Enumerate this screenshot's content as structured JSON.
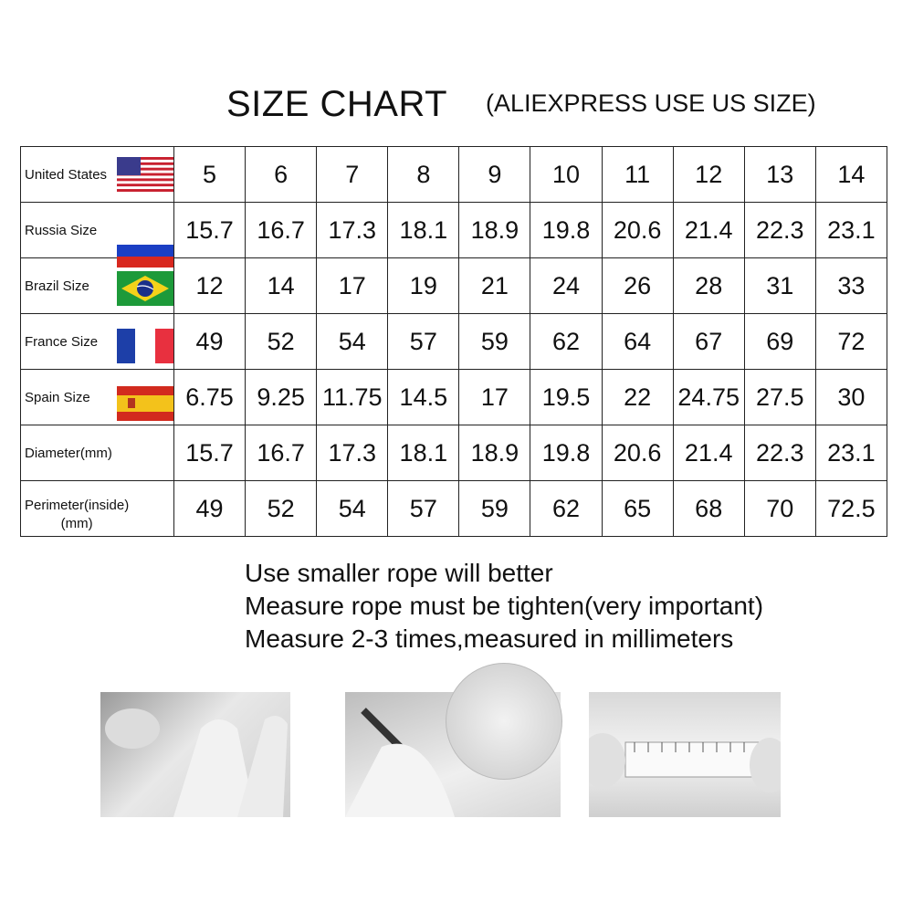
{
  "header": {
    "title": "SIZE CHART",
    "subtitle": "(ALIEXPRESS USE US SIZE)"
  },
  "table": {
    "rows": [
      {
        "label": "United States",
        "flag": "us-flag-icon",
        "values": [
          "5",
          "6",
          "7",
          "8",
          "9",
          "10",
          "11",
          "12",
          "13",
          "14"
        ]
      },
      {
        "label": "Russia Size",
        "flag": "russia-flag-icon",
        "values": [
          "15.7",
          "16.7",
          "17.3",
          "18.1",
          "18.9",
          "19.8",
          "20.6",
          "21.4",
          "22.3",
          "23.1"
        ]
      },
      {
        "label": "Brazil Size",
        "flag": "brazil-flag-icon",
        "values": [
          "12",
          "14",
          "17",
          "19",
          "21",
          "24",
          "26",
          "28",
          "31",
          "33"
        ]
      },
      {
        "label": "France Size",
        "flag": "france-flag-icon",
        "values": [
          "49",
          "52",
          "54",
          "57",
          "59",
          "62",
          "64",
          "67",
          "69",
          "72"
        ]
      },
      {
        "label": "Spain Size",
        "flag": "spain-flag-icon",
        "values": [
          "6.75",
          "9.25",
          "11.75",
          "14.5",
          "17",
          "19.5",
          "22",
          "24.75",
          "27.5",
          "30"
        ]
      },
      {
        "label": "Diameter(mm)",
        "values": [
          "15.7",
          "16.7",
          "17.3",
          "18.1",
          "18.9",
          "19.8",
          "20.6",
          "21.4",
          "22.3",
          "23.1"
        ]
      },
      {
        "label": "Perimeter(inside)",
        "label2": "(mm)",
        "values": [
          "49",
          "52",
          "54",
          "57",
          "59",
          "62",
          "65",
          "68",
          "70",
          "72.5"
        ]
      }
    ]
  },
  "notes": [
    "Use smaller rope will better",
    "Measure rope must be tighten(very important)",
    "Measure 2-3 times,measured in millimeters"
  ]
}
